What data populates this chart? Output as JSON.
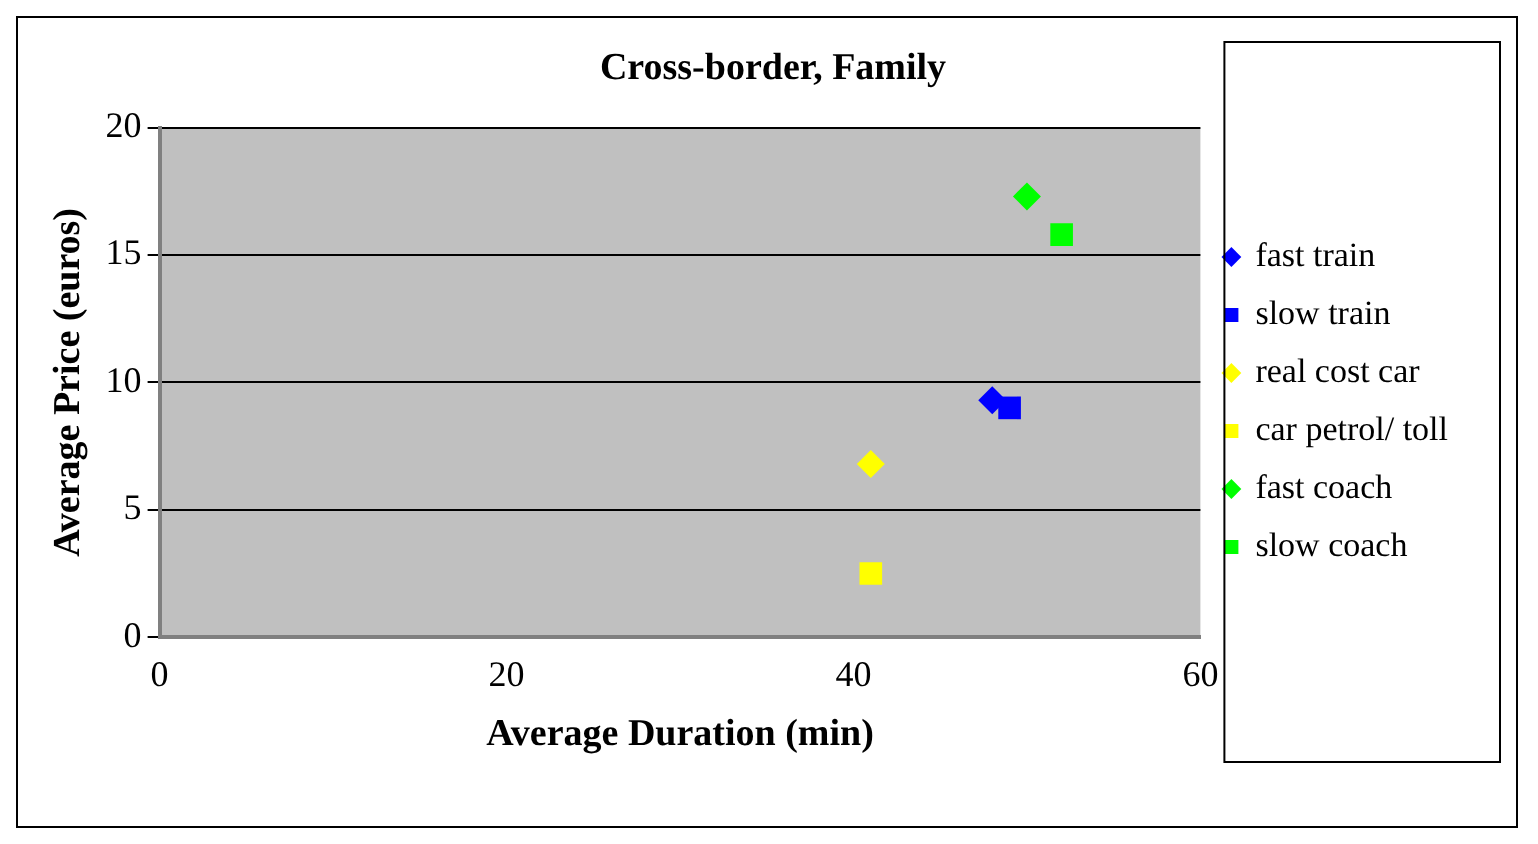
{
  "chart_data": {
    "type": "scatter",
    "title": "Cross-border, Family",
    "xlabel": "Average Duration (min)",
    "ylabel": "Average Price (euros)",
    "xlim": [
      0,
      60
    ],
    "xticks": [
      0,
      20,
      40,
      60
    ],
    "ylim": [
      0,
      20
    ],
    "yticks": [
      0,
      5,
      10,
      15,
      20
    ],
    "grid": "y",
    "legend": "right",
    "series": [
      {
        "name": "fast train",
        "color": "#0000ff",
        "marker": "diamond",
        "x": [
          48
        ],
        "values": [
          9.3
        ]
      },
      {
        "name": "slow train",
        "color": "#0000ff",
        "marker": "square",
        "x": [
          49
        ],
        "values": [
          9
        ]
      },
      {
        "name": "real cost car",
        "color": "#ffff00",
        "marker": "diamond",
        "x": [
          41
        ],
        "values": [
          6.8
        ]
      },
      {
        "name": "car petrol/ toll",
        "color": "#ffff00",
        "marker": "square",
        "x": [
          41
        ],
        "values": [
          2.5
        ]
      },
      {
        "name": "fast coach",
        "color": "#00ff00",
        "marker": "diamond",
        "x": [
          50
        ],
        "values": [
          17.3
        ]
      },
      {
        "name": "slow coach",
        "color": "#00ff00",
        "marker": "square",
        "x": [
          52
        ],
        "values": [
          15.8
        ]
      }
    ]
  }
}
